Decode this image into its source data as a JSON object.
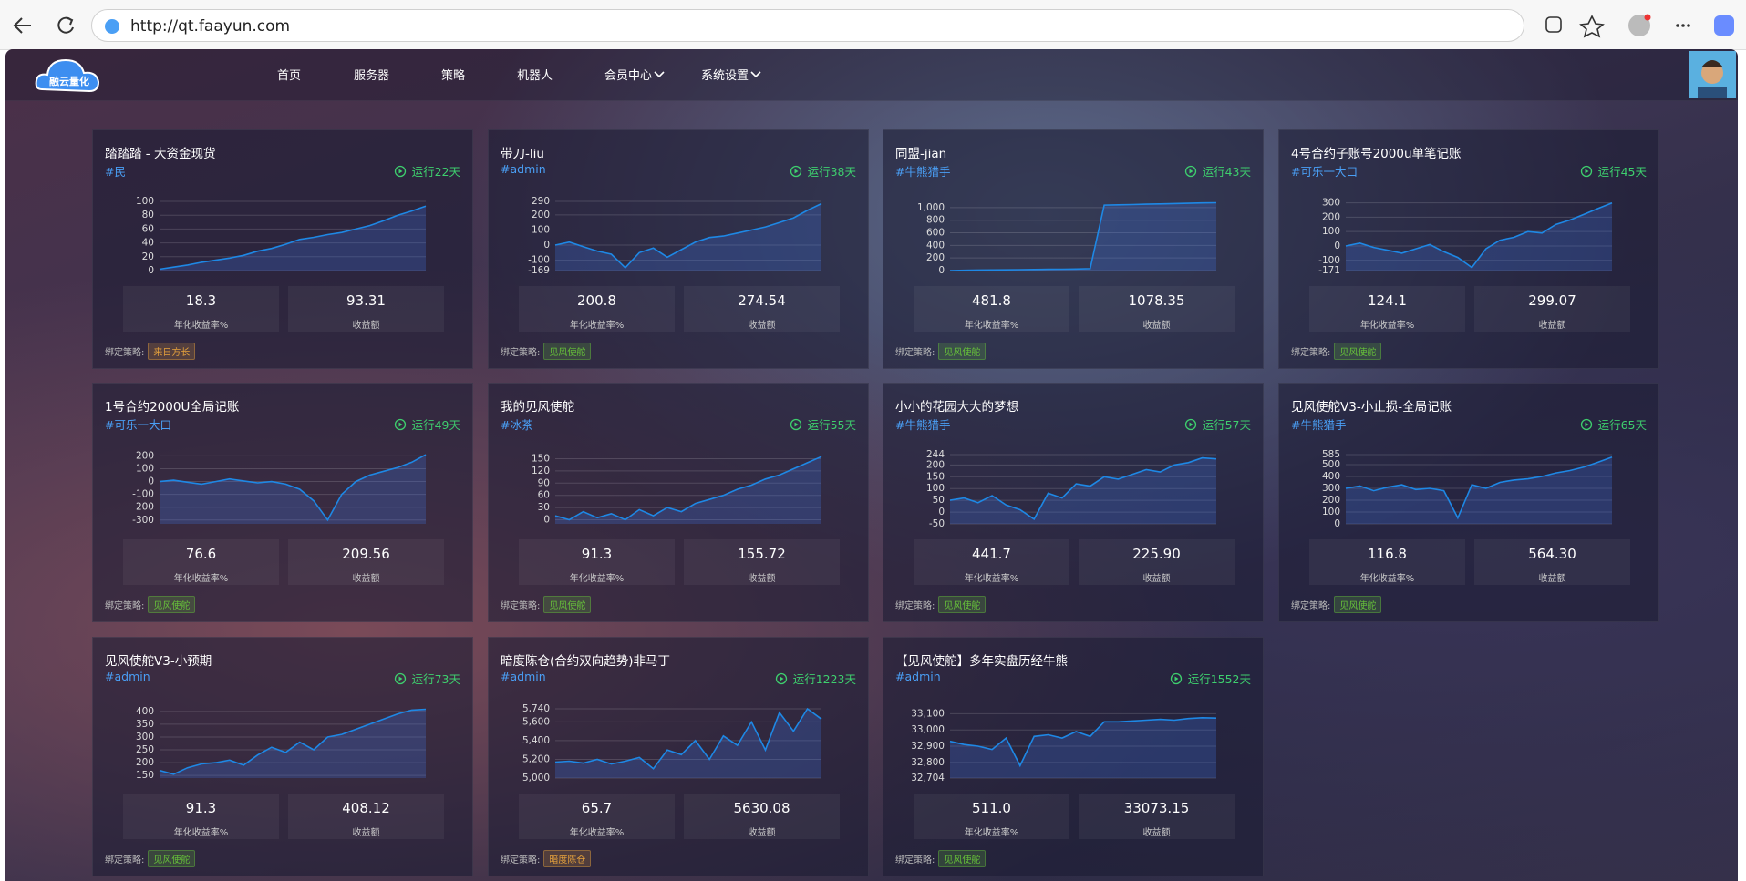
{
  "browser": {
    "url": "http://qt.faayun.com"
  },
  "nav": {
    "logo": "融云量化",
    "items": [
      "首页",
      "服务器",
      "策略",
      "机器人",
      "会员中心",
      "系统设置"
    ]
  },
  "labels": {
    "annual": "年化收益率%",
    "profit": "收益额",
    "strategy": "绑定策略:"
  },
  "cards": [
    {
      "title": "踏踏踏 - 大资金现货",
      "tag": "#民",
      "runtime": "运行22天",
      "chart": {
        "ylim": [
          0,
          100
        ],
        "yticks": [
          0,
          20,
          40,
          60,
          80,
          100
        ],
        "color": "#1e88e5",
        "values": [
          2,
          5,
          8,
          12,
          15,
          18,
          22,
          28,
          32,
          38,
          45,
          48,
          52,
          55,
          60,
          65,
          72,
          80,
          86,
          93
        ]
      },
      "stats": [
        "18.3",
        "93.31"
      ],
      "strategy": "来日方长",
      "strategy_color": "#e6a23c"
    },
    {
      "title": "带刀-liu",
      "tag": "#admin",
      "runtime": "运行38天",
      "chart": {
        "ylim": [
          -169,
          290
        ],
        "yticks": [
          -169,
          -100,
          0,
          100,
          200,
          290
        ],
        "color": "#1e88e5",
        "values": [
          0,
          20,
          -10,
          -40,
          -60,
          -150,
          -50,
          -20,
          -80,
          -30,
          20,
          50,
          60,
          80,
          100,
          120,
          150,
          180,
          230,
          275
        ]
      },
      "stats": [
        "200.8",
        "274.54"
      ],
      "strategy": "见风使舵",
      "strategy_color": "#67c23a"
    },
    {
      "title": "同盟-jian",
      "tag": "#牛熊猎手",
      "runtime": "运行43天",
      "chart": {
        "ylim": [
          0,
          1100
        ],
        "yticks": [
          0,
          200,
          400,
          600,
          800,
          {
            "value": 1000,
            "label": "1,000"
          }
        ],
        "color": "#1e88e5",
        "values": [
          0,
          5,
          8,
          10,
          12,
          15,
          18,
          20,
          22,
          25,
          30,
          1040,
          1045,
          1050,
          1055,
          1060,
          1065,
          1070,
          1075,
          1078
        ]
      },
      "stats": [
        "481.8",
        "1078.35"
      ],
      "strategy": "见风使舵",
      "strategy_color": "#67c23a"
    },
    {
      "title": "4号合约子账号2000u单笔记账",
      "tag": "#可乐一大口",
      "runtime": "运行45天",
      "chart": {
        "ylim": [
          -171,
          310
        ],
        "yticks": [
          -171,
          -100,
          0,
          100,
          200,
          300
        ],
        "color": "#1e88e5",
        "values": [
          0,
          20,
          -10,
          -30,
          -50,
          -20,
          10,
          -40,
          -80,
          -150,
          -20,
          40,
          60,
          100,
          90,
          150,
          180,
          220,
          260,
          299
        ]
      },
      "stats": [
        "124.1",
        "299.07"
      ],
      "strategy": "见风使舵",
      "strategy_color": "#67c23a"
    },
    {
      "title": "1号合约2000U全局记账",
      "tag": "#可乐一大口",
      "runtime": "运行49天",
      "chart": {
        "ylim": [
          -330,
          210
        ],
        "yticks": [
          -300,
          -200,
          -100,
          0,
          100,
          200
        ],
        "color": "#1e88e5",
        "values": [
          0,
          10,
          -5,
          -20,
          0,
          20,
          5,
          -10,
          0,
          -20,
          -60,
          -150,
          -300,
          -100,
          0,
          50,
          80,
          110,
          150,
          209
        ]
      },
      "stats": [
        "76.6",
        "209.56"
      ],
      "strategy": "见风使舵",
      "strategy_color": "#67c23a"
    },
    {
      "title": "我的见风使舵",
      "tag": "#冰茶",
      "runtime": "运行55天",
      "chart": {
        "ylim": [
          -10,
          160
        ],
        "yticks": [
          0,
          30,
          60,
          90,
          120,
          150
        ],
        "color": "#1e88e5",
        "values": [
          10,
          0,
          20,
          5,
          15,
          0,
          25,
          10,
          30,
          20,
          40,
          50,
          60,
          75,
          85,
          100,
          110,
          125,
          140,
          155
        ]
      },
      "stats": [
        "91.3",
        "155.72"
      ],
      "strategy": "见风使舵",
      "strategy_color": "#67c23a"
    },
    {
      "title": "小小的花园大大的梦想",
      "tag": "#牛熊猎手",
      "runtime": "运行57天",
      "chart": {
        "ylim": [
          -50,
          244
        ],
        "yticks": [
          -50,
          0,
          50,
          100,
          150,
          200,
          244
        ],
        "color": "#1e88e5",
        "values": [
          50,
          60,
          40,
          70,
          30,
          10,
          -30,
          80,
          60,
          120,
          110,
          150,
          140,
          160,
          180,
          170,
          200,
          210,
          230,
          226
        ]
      },
      "stats": [
        "441.7",
        "225.90"
      ],
      "strategy": "见风使舵",
      "strategy_color": "#67c23a"
    },
    {
      "title": "见风使舵V3-小止损-全局记账",
      "tag": "#牛熊猎手",
      "runtime": "运行65天",
      "chart": {
        "ylim": [
          0,
          585
        ],
        "yticks": [
          0,
          100,
          200,
          300,
          400,
          500,
          585
        ],
        "color": "#1e88e5",
        "values": [
          300,
          320,
          280,
          310,
          330,
          290,
          300,
          280,
          50,
          330,
          300,
          350,
          370,
          380,
          400,
          430,
          450,
          480,
          520,
          564
        ]
      },
      "stats": [
        "116.8",
        "564.30"
      ],
      "strategy": "见风使舵",
      "strategy_color": "#67c23a"
    },
    {
      "title": "见风使舵V3-小预期",
      "tag": "#admin",
      "runtime": "运行73天",
      "chart": {
        "ylim": [
          140,
          410
        ],
        "yticks": [
          150,
          200,
          250,
          300,
          350,
          400
        ],
        "color": "#1e88e5",
        "values": [
          170,
          155,
          180,
          195,
          200,
          210,
          190,
          230,
          260,
          240,
          280,
          250,
          300,
          310,
          330,
          350,
          370,
          390,
          405,
          408
        ]
      },
      "stats": [
        "91.3",
        "408.12"
      ],
      "strategy": "见风使舵",
      "strategy_color": "#67c23a"
    },
    {
      "title": "暗度陈仓(合约双向趋势)非马丁",
      "tag": "#admin",
      "runtime": "运行1223天",
      "chart": {
        "ylim": [
          5000,
          5740
        ],
        "yticks": [
          {
            "value": 5000,
            "label": "5,000"
          },
          {
            "value": 5200,
            "label": "5,200"
          },
          {
            "value": 5400,
            "label": "5,400"
          },
          {
            "value": 5600,
            "label": "5,600"
          },
          {
            "value": 5740,
            "label": "5,740"
          }
        ],
        "color": "#1e88e5",
        "values": [
          5170,
          5180,
          5160,
          5200,
          5150,
          5180,
          5220,
          5100,
          5300,
          5250,
          5400,
          5200,
          5450,
          5350,
          5600,
          5300,
          5700,
          5500,
          5740,
          5630
        ]
      },
      "stats": [
        "65.7",
        "5630.08"
      ],
      "strategy": "暗度陈仓",
      "strategy_color": "#e6a23c"
    },
    {
      "title": "【见风使舵】多年实盘历经牛熊",
      "tag": "#admin",
      "runtime": "运行1552天",
      "chart": {
        "ylim": [
          32704,
          33130
        ],
        "yticks": [
          {
            "value": 32704,
            "label": "32,704"
          },
          {
            "value": 32800,
            "label": "32,800"
          },
          {
            "value": 32900,
            "label": "32,900"
          },
          {
            "value": 33000,
            "label": "33,000"
          },
          {
            "value": 33100,
            "label": "33,100"
          }
        ],
        "color": "#1e88e5",
        "values": [
          32930,
          32910,
          32900,
          32880,
          32950,
          32780,
          32960,
          32970,
          32950,
          32990,
          32960,
          33050,
          33050,
          33055,
          33060,
          33065,
          33060,
          33070,
          33075,
          33073
        ]
      },
      "stats": [
        "511.0",
        "33073.15"
      ],
      "strategy": "见风使舵",
      "strategy_color": "#67c23a"
    }
  ]
}
